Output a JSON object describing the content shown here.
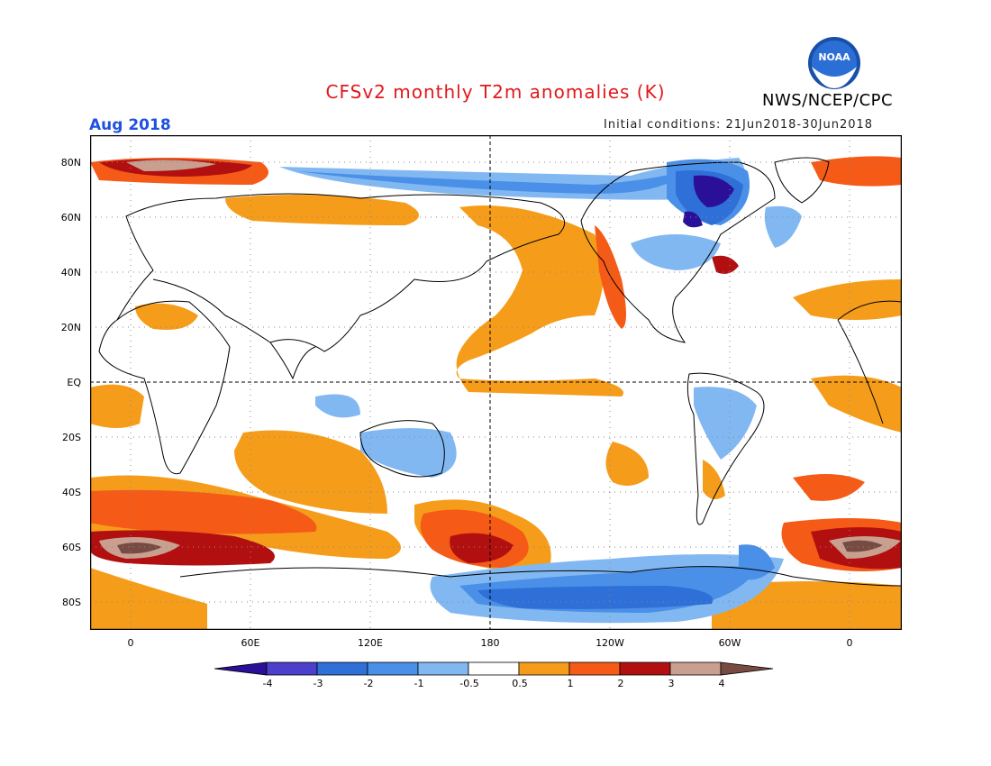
{
  "header": {
    "title": "CFSv2 monthly T2m anomalies (K)",
    "agency": "NWS/NCEP/CPC",
    "month": "Aug 2018",
    "initial_conditions": "Initial conditions: 21Jun2018-30Jun2018",
    "logo_text": "NOAA"
  },
  "map": {
    "projection": "cylindrical equidistant",
    "y_ticks": [
      "80N",
      "60N",
      "40N",
      "20N",
      "EQ",
      "20S",
      "40S",
      "60S",
      "80S"
    ],
    "x_ticks": [
      "0",
      "60E",
      "120E",
      "180",
      "120W",
      "60W",
      "0"
    ],
    "reference_lines": [
      "Equator",
      "180 meridian"
    ],
    "grid": "dotted"
  },
  "colorbar": {
    "tick_labels": [
      "-4",
      "-3",
      "-2",
      "-1",
      "-0.5",
      "0.5",
      "1",
      "2",
      "3",
      "4"
    ],
    "colors": [
      "#2a1099",
      "#4b3fcb",
      "#2e6fd8",
      "#4a90e8",
      "#82b8f2",
      "#ffffff",
      "#f59d1a",
      "#f55a17",
      "#b21010",
      "#c9a090",
      "#774a42"
    ],
    "units": "K"
  }
}
